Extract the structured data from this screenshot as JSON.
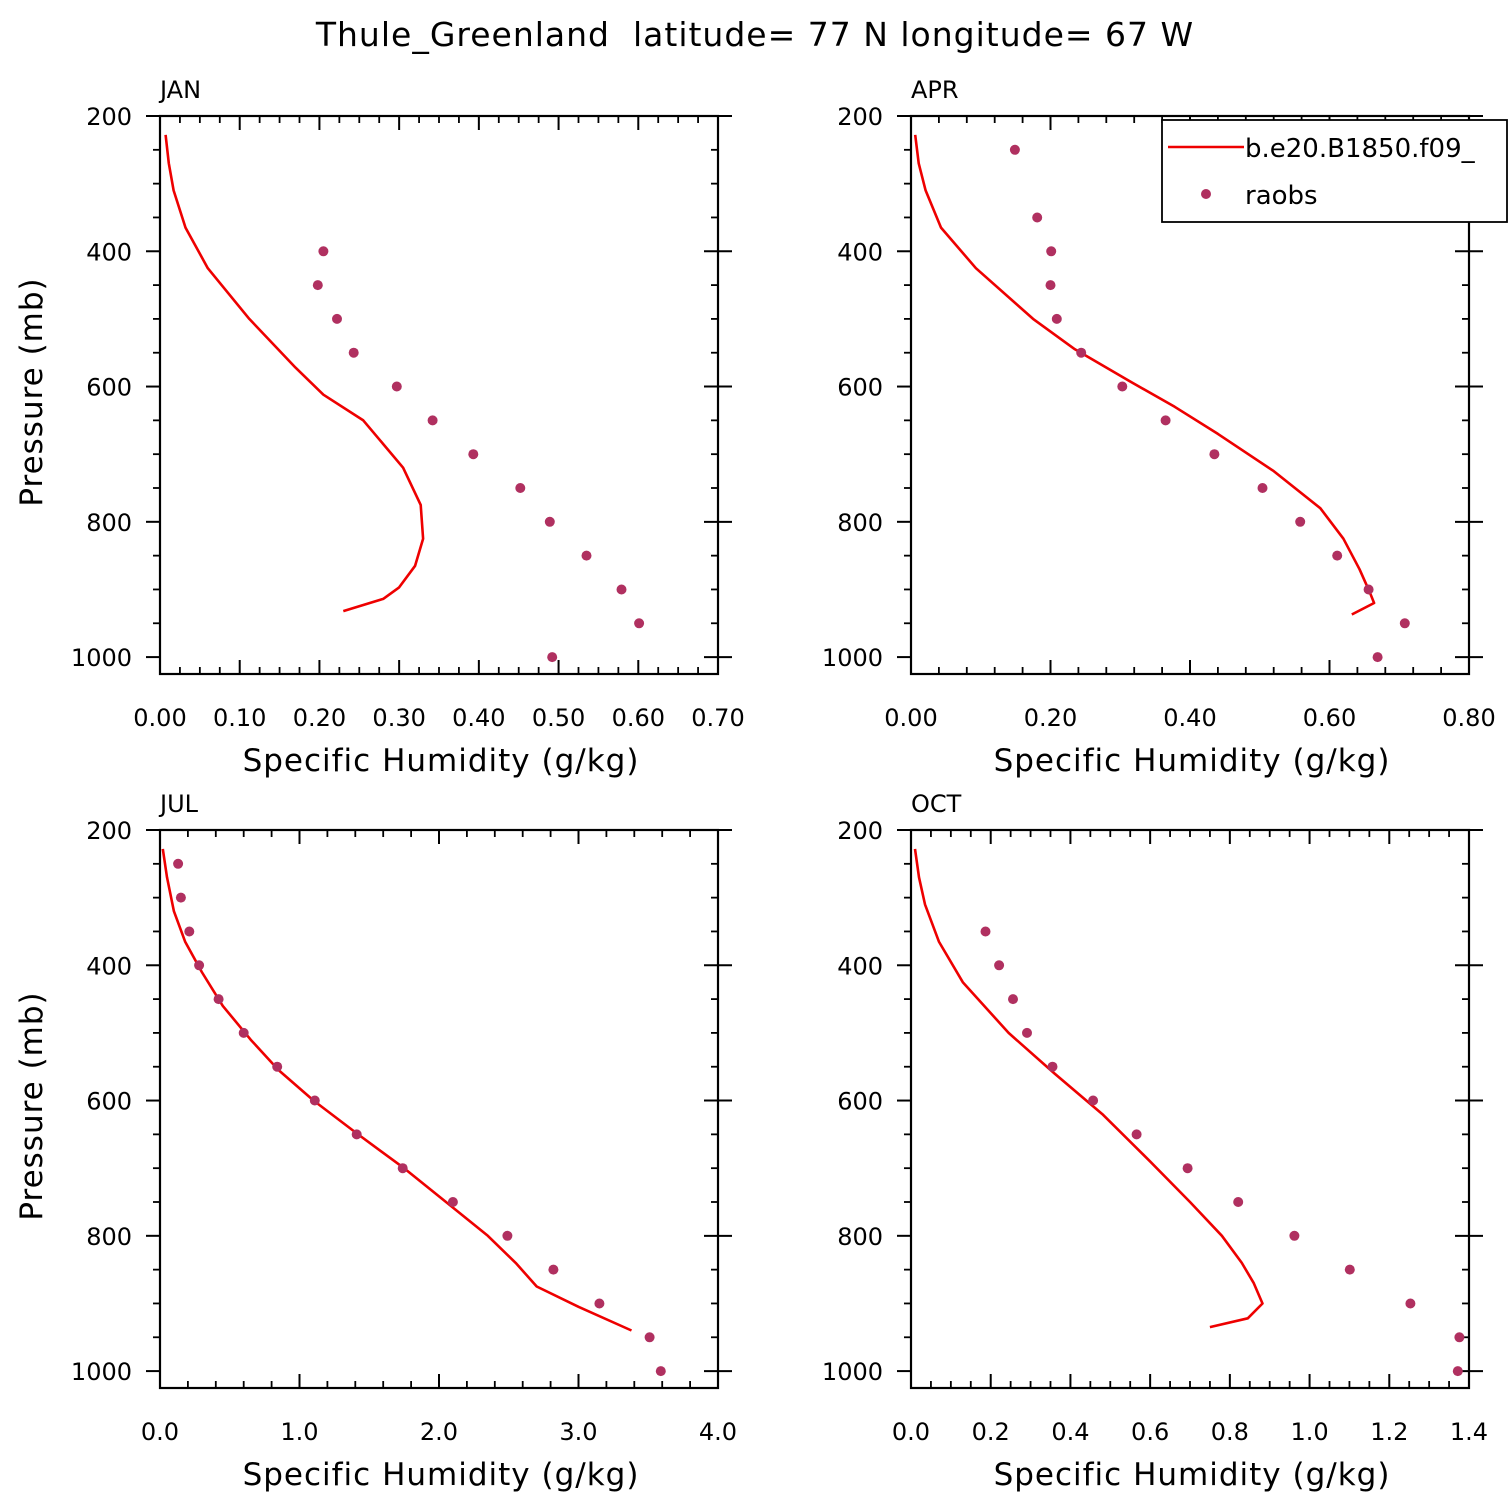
{
  "title": "Thule_Greenland  latitude= 77 N longitude= 67 W",
  "colors": {
    "model": "#ee0000",
    "obs": "#b03060"
  },
  "legend": {
    "model_label": "b.e20.B1850.f09_",
    "obs_label": "raobs"
  },
  "chart_data": [
    {
      "type": "line",
      "panel_title": "JAN",
      "xlabel": "Specific Humidity (g/kg)",
      "ylabel": "Pressure (mb)",
      "xlim": [
        0,
        0.7
      ],
      "ylim": [
        1025,
        200
      ],
      "x_ticks": [
        0,
        0.1,
        0.2,
        0.3,
        0.4,
        0.5,
        0.6,
        0.7
      ],
      "x_tick_labels": [
        "0.00",
        "0.10",
        "0.20",
        "0.30",
        "0.40",
        "0.50",
        "0.60",
        "0.70"
      ],
      "y_ticks": [
        200,
        400,
        600,
        800,
        1000
      ],
      "y_tick_labels": [
        "200",
        "400",
        "600",
        "800",
        "1000"
      ],
      "series": [
        {
          "kind": "line",
          "points": [
            [
              0.007,
              228
            ],
            [
              0.011,
              270
            ],
            [
              0.017,
              310
            ],
            [
              0.032,
              365
            ],
            [
              0.06,
              425
            ],
            [
              0.112,
              500
            ],
            [
              0.17,
              572
            ],
            [
              0.205,
              612
            ],
            [
              0.255,
              650
            ],
            [
              0.305,
              720
            ],
            [
              0.327,
              775
            ],
            [
              0.33,
              825
            ],
            [
              0.32,
              865
            ],
            [
              0.3,
              897
            ],
            [
              0.28,
              914
            ],
            [
              0.23,
              932
            ]
          ]
        },
        {
          "kind": "scatter",
          "points": [
            [
              0.205,
              400
            ],
            [
              0.198,
              450
            ],
            [
              0.222,
              500
            ],
            [
              0.243,
              550
            ],
            [
              0.297,
              600
            ],
            [
              0.342,
              650
            ],
            [
              0.393,
              700
            ],
            [
              0.452,
              750
            ],
            [
              0.489,
              800
            ],
            [
              0.535,
              850
            ],
            [
              0.579,
              900
            ],
            [
              0.601,
              950
            ],
            [
              0.492,
              1000
            ]
          ]
        }
      ]
    },
    {
      "type": "line",
      "panel_title": "APR",
      "xlabel": "Specific Humidity (g/kg)",
      "ylabel": "",
      "xlim": [
        0,
        0.8
      ],
      "ylim": [
        1025,
        200
      ],
      "x_ticks": [
        0,
        0.2,
        0.4,
        0.6,
        0.8
      ],
      "x_tick_labels": [
        "0.00",
        "0.20",
        "0.40",
        "0.60",
        "0.80"
      ],
      "y_ticks": [
        200,
        400,
        600,
        800,
        1000
      ],
      "y_tick_labels": [
        "200",
        "400",
        "600",
        "800",
        "1000"
      ],
      "legend_position": "top-right",
      "series": [
        {
          "kind": "line",
          "points": [
            [
              0.006,
              228
            ],
            [
              0.011,
              270
            ],
            [
              0.021,
              310
            ],
            [
              0.043,
              365
            ],
            [
              0.093,
              425
            ],
            [
              0.175,
              500
            ],
            [
              0.235,
              545
            ],
            [
              0.31,
              590
            ],
            [
              0.378,
              630
            ],
            [
              0.44,
              670
            ],
            [
              0.52,
              725
            ],
            [
              0.587,
              780
            ],
            [
              0.62,
              825
            ],
            [
              0.643,
              870
            ],
            [
              0.658,
              905
            ],
            [
              0.664,
              920
            ],
            [
              0.632,
              937
            ]
          ]
        },
        {
          "kind": "scatter",
          "points": [
            [
              0.149,
              250
            ],
            [
              0.181,
              350
            ],
            [
              0.201,
              400
            ],
            [
              0.2,
              450
            ],
            [
              0.209,
              500
            ],
            [
              0.244,
              550
            ],
            [
              0.303,
              600
            ],
            [
              0.365,
              650
            ],
            [
              0.435,
              700
            ],
            [
              0.504,
              750
            ],
            [
              0.558,
              800
            ],
            [
              0.611,
              850
            ],
            [
              0.656,
              900
            ],
            [
              0.708,
              950
            ],
            [
              0.669,
              1000
            ]
          ]
        }
      ]
    },
    {
      "type": "line",
      "panel_title": "JUL",
      "xlabel": "Specific Humidity (g/kg)",
      "ylabel": "Pressure (mb)",
      "xlim": [
        0,
        4.0
      ],
      "ylim": [
        1025,
        200
      ],
      "x_ticks": [
        0,
        1,
        2,
        3,
        4
      ],
      "x_tick_labels": [
        "0.0",
        "1.0",
        "2.0",
        "3.0",
        "4.0"
      ],
      "y_ticks": [
        200,
        400,
        600,
        800,
        1000
      ],
      "y_tick_labels": [
        "200",
        "400",
        "600",
        "800",
        "1000"
      ],
      "series": [
        {
          "kind": "line",
          "points": [
            [
              0.02,
              228
            ],
            [
              0.05,
              270
            ],
            [
              0.1,
              320
            ],
            [
              0.18,
              365
            ],
            [
              0.3,
              410
            ],
            [
              0.45,
              460
            ],
            [
              0.65,
              510
            ],
            [
              0.85,
              555
            ],
            [
              1.1,
              600
            ],
            [
              1.42,
              650
            ],
            [
              1.75,
              700
            ],
            [
              2.05,
              750
            ],
            [
              2.35,
              800
            ],
            [
              2.55,
              840
            ],
            [
              2.7,
              875
            ],
            [
              3.0,
              905
            ],
            [
              3.38,
              940
            ]
          ]
        },
        {
          "kind": "scatter",
          "points": [
            [
              0.13,
              250
            ],
            [
              0.15,
              300
            ],
            [
              0.21,
              350
            ],
            [
              0.28,
              400
            ],
            [
              0.42,
              450
            ],
            [
              0.6,
              500
            ],
            [
              0.84,
              550
            ],
            [
              1.11,
              600
            ],
            [
              1.41,
              650
            ],
            [
              1.74,
              700
            ],
            [
              2.1,
              750
            ],
            [
              2.49,
              800
            ],
            [
              2.82,
              850
            ],
            [
              3.15,
              900
            ],
            [
              3.51,
              950
            ],
            [
              3.59,
              1000
            ]
          ]
        }
      ]
    },
    {
      "type": "line",
      "panel_title": "OCT",
      "xlabel": "Specific Humidity (g/kg)",
      "ylabel": "",
      "xlim": [
        0,
        1.4
      ],
      "ylim": [
        1025,
        200
      ],
      "x_ticks": [
        0,
        0.2,
        0.4,
        0.6,
        0.8,
        1.0,
        1.2,
        1.4
      ],
      "x_tick_labels": [
        "0.0",
        "0.2",
        "0.4",
        "0.6",
        "0.8",
        "1.0",
        "1.2",
        "1.4"
      ],
      "y_ticks": [
        200,
        400,
        600,
        800,
        1000
      ],
      "y_tick_labels": [
        "200",
        "400",
        "600",
        "800",
        "1000"
      ],
      "series": [
        {
          "kind": "line",
          "points": [
            [
              0.01,
              228
            ],
            [
              0.02,
              270
            ],
            [
              0.035,
              310
            ],
            [
              0.07,
              365
            ],
            [
              0.13,
              425
            ],
            [
              0.245,
              500
            ],
            [
              0.36,
              560
            ],
            [
              0.48,
              620
            ],
            [
              0.6,
              690
            ],
            [
              0.7,
              750
            ],
            [
              0.78,
              800
            ],
            [
              0.83,
              840
            ],
            [
              0.86,
              870
            ],
            [
              0.882,
              900
            ],
            [
              0.845,
              922
            ],
            [
              0.75,
              935
            ]
          ]
        },
        {
          "kind": "scatter",
          "points": [
            [
              0.187,
              350
            ],
            [
              0.221,
              400
            ],
            [
              0.256,
              450
            ],
            [
              0.291,
              500
            ],
            [
              0.355,
              550
            ],
            [
              0.457,
              600
            ],
            [
              0.566,
              650
            ],
            [
              0.694,
              700
            ],
            [
              0.821,
              750
            ],
            [
              0.962,
              800
            ],
            [
              1.101,
              850
            ],
            [
              1.253,
              900
            ],
            [
              1.376,
              950
            ],
            [
              1.372,
              1000
            ]
          ]
        }
      ]
    }
  ]
}
